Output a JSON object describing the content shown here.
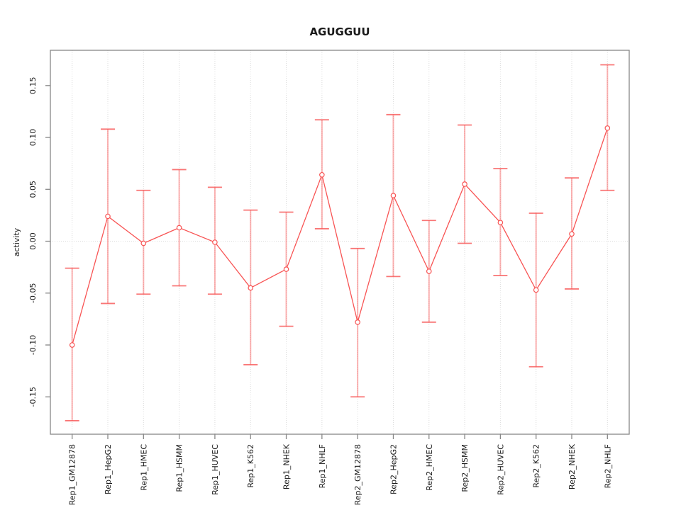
{
  "title": "AGUGGUU",
  "colors": {
    "series_red": "#f85454",
    "errorbar_red": "#f85454",
    "errorbar_alpha": 0.45,
    "cap_alpha": 0.8,
    "grid_gray": "#dcdcdc",
    "axis_gray": "#878787",
    "text_dark": "#1a1a1a"
  },
  "chart_data": {
    "type": "line",
    "subtype": "points-with-error-bars",
    "title": "AGUGGUU",
    "xlabel": "",
    "ylabel": "activity",
    "legend": "none",
    "grid": "vertical-dotted-per-category-plus-zero-line",
    "marker": "open-circle",
    "ylim": [
      -0.186,
      0.184
    ],
    "yticks": [
      0.15,
      0.1,
      0.05,
      0.0,
      -0.05,
      -0.1,
      -0.15
    ],
    "ytick_labels": [
      "0.15",
      "0.10",
      "0.05",
      "0.00",
      "-0.05",
      "-0.10",
      "-0.15"
    ],
    "categories": [
      "Rep1_GM12878",
      "Rep1_HepG2",
      "Rep1_HMEC",
      "Rep1_HSMM",
      "Rep1_HUVEC",
      "Rep1_K562",
      "Rep1_NHEK",
      "Rep1_NHLF",
      "Rep2_GM12878",
      "Rep2_HepG2",
      "Rep2_HMEC",
      "Rep2_HSMM",
      "Rep2_HUVEC",
      "Rep2_K562",
      "Rep2_NHEK",
      "Rep2_NHLF"
    ],
    "series": [
      {
        "name": "activity",
        "values": [
          -0.1,
          0.024,
          -0.002,
          0.013,
          -0.001,
          -0.045,
          -0.027,
          0.064,
          -0.078,
          0.044,
          -0.029,
          0.055,
          0.018,
          -0.047,
          0.007,
          0.109
        ],
        "err_high": [
          -0.026,
          0.108,
          0.049,
          0.069,
          0.052,
          0.03,
          0.028,
          0.117,
          -0.007,
          0.122,
          0.02,
          0.112,
          0.07,
          0.027,
          0.061,
          0.17
        ],
        "err_low": [
          -0.173,
          -0.06,
          -0.051,
          -0.043,
          -0.051,
          -0.119,
          -0.082,
          0.012,
          -0.15,
          -0.034,
          -0.078,
          -0.002,
          -0.033,
          -0.121,
          -0.046,
          0.049
        ]
      }
    ]
  }
}
